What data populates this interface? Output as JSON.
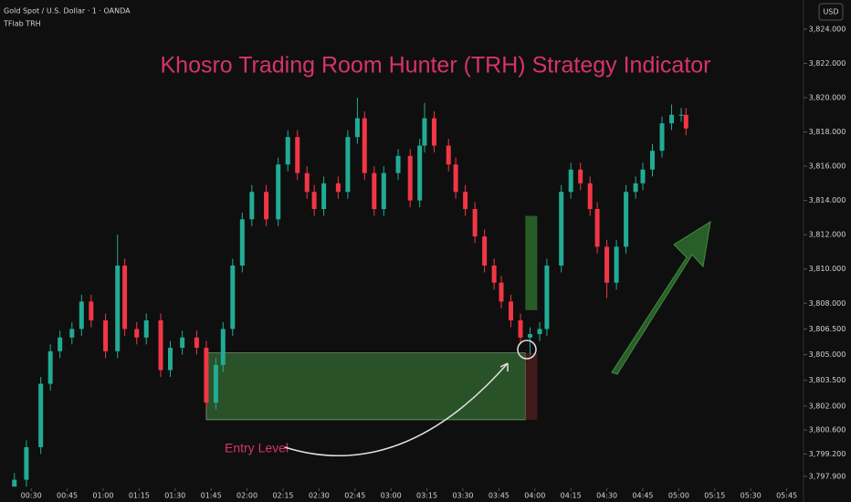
{
  "header": {
    "symbol": "Gold Spot / U.S. Dollar · 1 · OANDA",
    "indicator": "TFlab TRH",
    "currency": "USD"
  },
  "chart_data": {
    "type": "candlestick",
    "title": "Khosro Trading Room Hunter (TRH) Strategy Indicator",
    "annotation": "Entry Level",
    "up_color": "#22ab94",
    "down_color": "#f23645",
    "grid": false,
    "x": [
      23,
      28,
      34,
      38,
      42,
      47,
      51,
      55,
      61,
      66,
      69,
      74,
      78,
      84,
      88,
      93,
      99,
      103,
      107,
      110,
      114,
      118,
      122,
      128,
      133,
      137,
      141,
      145,
      148,
      152,
      158,
      162,
      166,
      169,
      173,
      177,
      183,
      188,
      192,
      194,
      198,
      204,
      207,
      211,
      215,
      219,
      223,
      226,
      230,
      234,
      238,
      242,
      245,
      251,
      255,
      259,
      263,
      266,
      270,
      274,
      278,
      282,
      285,
      289,
      293,
      297,
      301,
      303
    ],
    "open": [
      3797.3,
      3797.7,
      3799.6,
      3803.3,
      3805.2,
      3806.0,
      3806.5,
      3808.1,
      3807.0,
      3805.2,
      3810.2,
      3806.5,
      3806.0,
      3807.0,
      3804.1,
      3805.4,
      3806.0,
      3805.4,
      3802.2,
      3804.4,
      3806.5,
      3810.2,
      3812.9,
      3814.5,
      3812.9,
      3816.1,
      3817.7,
      3815.6,
      3814.5,
      3813.5,
      3815.0,
      3814.5,
      3817.7,
      3818.8,
      3815.6,
      3813.5,
      3815.6,
      3816.6,
      3814.0,
      3817.2,
      3818.8,
      3817.2,
      3816.1,
      3814.5,
      3813.5,
      3811.9,
      3810.2,
      3809.2,
      3808.1,
      3807.0,
      3806.0,
      3806.2,
      3806.5,
      3810.2,
      3814.5,
      3815.8,
      3815.0,
      3813.5,
      3811.3,
      3809.2,
      3811.3,
      3814.5,
      3815.0,
      3815.8,
      3816.9,
      3818.5,
      3819.0,
      3819.0
    ],
    "high": [
      3798.1,
      3800.0,
      3803.7,
      3805.6,
      3806.4,
      3806.9,
      3808.5,
      3808.5,
      3807.4,
      3812.0,
      3810.6,
      3806.9,
      3807.4,
      3807.4,
      3805.8,
      3806.4,
      3806.4,
      3805.8,
      3804.8,
      3806.9,
      3810.6,
      3813.3,
      3814.9,
      3814.9,
      3816.5,
      3818.1,
      3818.1,
      3816.0,
      3814.9,
      3815.4,
      3815.4,
      3818.1,
      3820.0,
      3819.2,
      3816.0,
      3816.0,
      3817.0,
      3817.0,
      3817.6,
      3819.7,
      3819.2,
      3817.6,
      3816.5,
      3814.9,
      3813.9,
      3812.3,
      3810.6,
      3809.6,
      3808.5,
      3807.4,
      3806.6,
      3806.9,
      3810.6,
      3814.9,
      3816.2,
      3816.2,
      3815.4,
      3813.9,
      3811.7,
      3811.7,
      3814.9,
      3815.4,
      3816.2,
      3817.3,
      3818.9,
      3819.6,
      3819.4,
      3819.4
    ],
    "low": [
      3797.3,
      3797.3,
      3799.2,
      3802.9,
      3804.8,
      3805.6,
      3806.1,
      3806.6,
      3804.8,
      3804.8,
      3806.1,
      3805.6,
      3805.6,
      3803.7,
      3803.7,
      3805.0,
      3805.0,
      3801.8,
      3801.8,
      3804.0,
      3806.1,
      3809.8,
      3812.5,
      3812.5,
      3812.5,
      3815.7,
      3815.2,
      3814.1,
      3813.1,
      3813.1,
      3814.1,
      3814.1,
      3817.3,
      3815.2,
      3813.1,
      3813.1,
      3815.2,
      3813.6,
      3813.6,
      3816.8,
      3816.8,
      3815.7,
      3814.1,
      3813.1,
      3811.5,
      3809.8,
      3808.8,
      3807.7,
      3806.6,
      3805.6,
      3805.0,
      3805.8,
      3806.1,
      3809.8,
      3814.1,
      3814.6,
      3813.1,
      3810.9,
      3808.3,
      3808.8,
      3810.9,
      3814.1,
      3814.6,
      3815.4,
      3816.5,
      3818.1,
      3818.6,
      3817.8
    ],
    "close": [
      3797.7,
      3799.6,
      3803.3,
      3805.2,
      3806.0,
      3806.5,
      3808.1,
      3807.0,
      3805.2,
      3810.2,
      3806.5,
      3806.0,
      3807.0,
      3804.1,
      3805.4,
      3806.0,
      3805.4,
      3802.2,
      3804.4,
      3806.5,
      3810.2,
      3812.9,
      3814.5,
      3812.9,
      3816.1,
      3817.7,
      3815.6,
      3814.5,
      3813.5,
      3815.0,
      3814.5,
      3817.7,
      3818.8,
      3815.6,
      3813.5,
      3815.6,
      3816.6,
      3814.0,
      3817.2,
      3818.8,
      3817.2,
      3816.1,
      3814.5,
      3813.5,
      3811.9,
      3810.2,
      3809.2,
      3808.1,
      3807.0,
      3806.0,
      3806.2,
      3806.5,
      3810.2,
      3814.5,
      3815.8,
      3815.0,
      3813.5,
      3811.3,
      3809.2,
      3811.3,
      3814.5,
      3815.0,
      3815.8,
      3816.9,
      3818.5,
      3819.0,
      3819.0,
      3818.2
    ],
    "zones": [
      {
        "x": [
          103,
          236
        ],
        "y": [
          3801.2,
          3805.1
        ],
        "color": "#2e5e2e"
      },
      {
        "x": [
          236,
          241
        ],
        "y": [
          3801.2,
          3805.1
        ],
        "color": "#4a1c1c"
      },
      {
        "x": [
          236,
          241
        ],
        "y": [
          3807.6,
          3813.1
        ],
        "color": "#2a6a2a"
      }
    ],
    "xlim": [
      17,
      352
    ],
    "ylim": [
      3797.2,
      3825.7
    ],
    "xticks": [
      {
        "value": 30,
        "label": "00:30"
      },
      {
        "value": 45,
        "label": "00:45"
      },
      {
        "value": 60,
        "label": "01:00"
      },
      {
        "value": 75,
        "label": "01:15"
      },
      {
        "value": 90,
        "label": "01:30"
      },
      {
        "value": 105,
        "label": "01:45"
      },
      {
        "value": 120,
        "label": "02:00"
      },
      {
        "value": 135,
        "label": "02:15"
      },
      {
        "value": 150,
        "label": "02:30"
      },
      {
        "value": 165,
        "label": "02:45"
      },
      {
        "value": 180,
        "label": "03:00"
      },
      {
        "value": 195,
        "label": "03:15"
      },
      {
        "value": 210,
        "label": "03:30"
      },
      {
        "value": 225,
        "label": "03:45"
      },
      {
        "value": 240,
        "label": "04:00"
      },
      {
        "value": 255,
        "label": "04:15"
      },
      {
        "value": 270,
        "label": "04:30"
      },
      {
        "value": 285,
        "label": "04:45"
      },
      {
        "value": 300,
        "label": "05:00"
      },
      {
        "value": 315,
        "label": "05:15"
      },
      {
        "value": 330,
        "label": "05:30"
      },
      {
        "value": 345,
        "label": "05:45"
      }
    ],
    "yticks": [
      {
        "value": 3824,
        "label": "3,824.000"
      },
      {
        "value": 3822,
        "label": "3,822.000"
      },
      {
        "value": 3820,
        "label": "3,820.000"
      },
      {
        "value": 3818,
        "label": "3,818.000"
      },
      {
        "value": 3816,
        "label": "3,816.000"
      },
      {
        "value": 3814,
        "label": "3,814.000"
      },
      {
        "value": 3812,
        "label": "3,812.000"
      },
      {
        "value": 3810,
        "label": "3,810.000"
      },
      {
        "value": 3808,
        "label": "3,808.000"
      },
      {
        "value": 3806.5,
        "label": "3,806.500"
      },
      {
        "value": 3805,
        "label": "3,805.000"
      },
      {
        "value": 3803.5,
        "label": "3,803.500"
      },
      {
        "value": 3802,
        "label": "3,802.000"
      },
      {
        "value": 3800.6,
        "label": "3,800.600"
      },
      {
        "value": 3799.2,
        "label": "3,799.200"
      },
      {
        "value": 3797.9,
        "label": "3,797.900"
      }
    ]
  }
}
